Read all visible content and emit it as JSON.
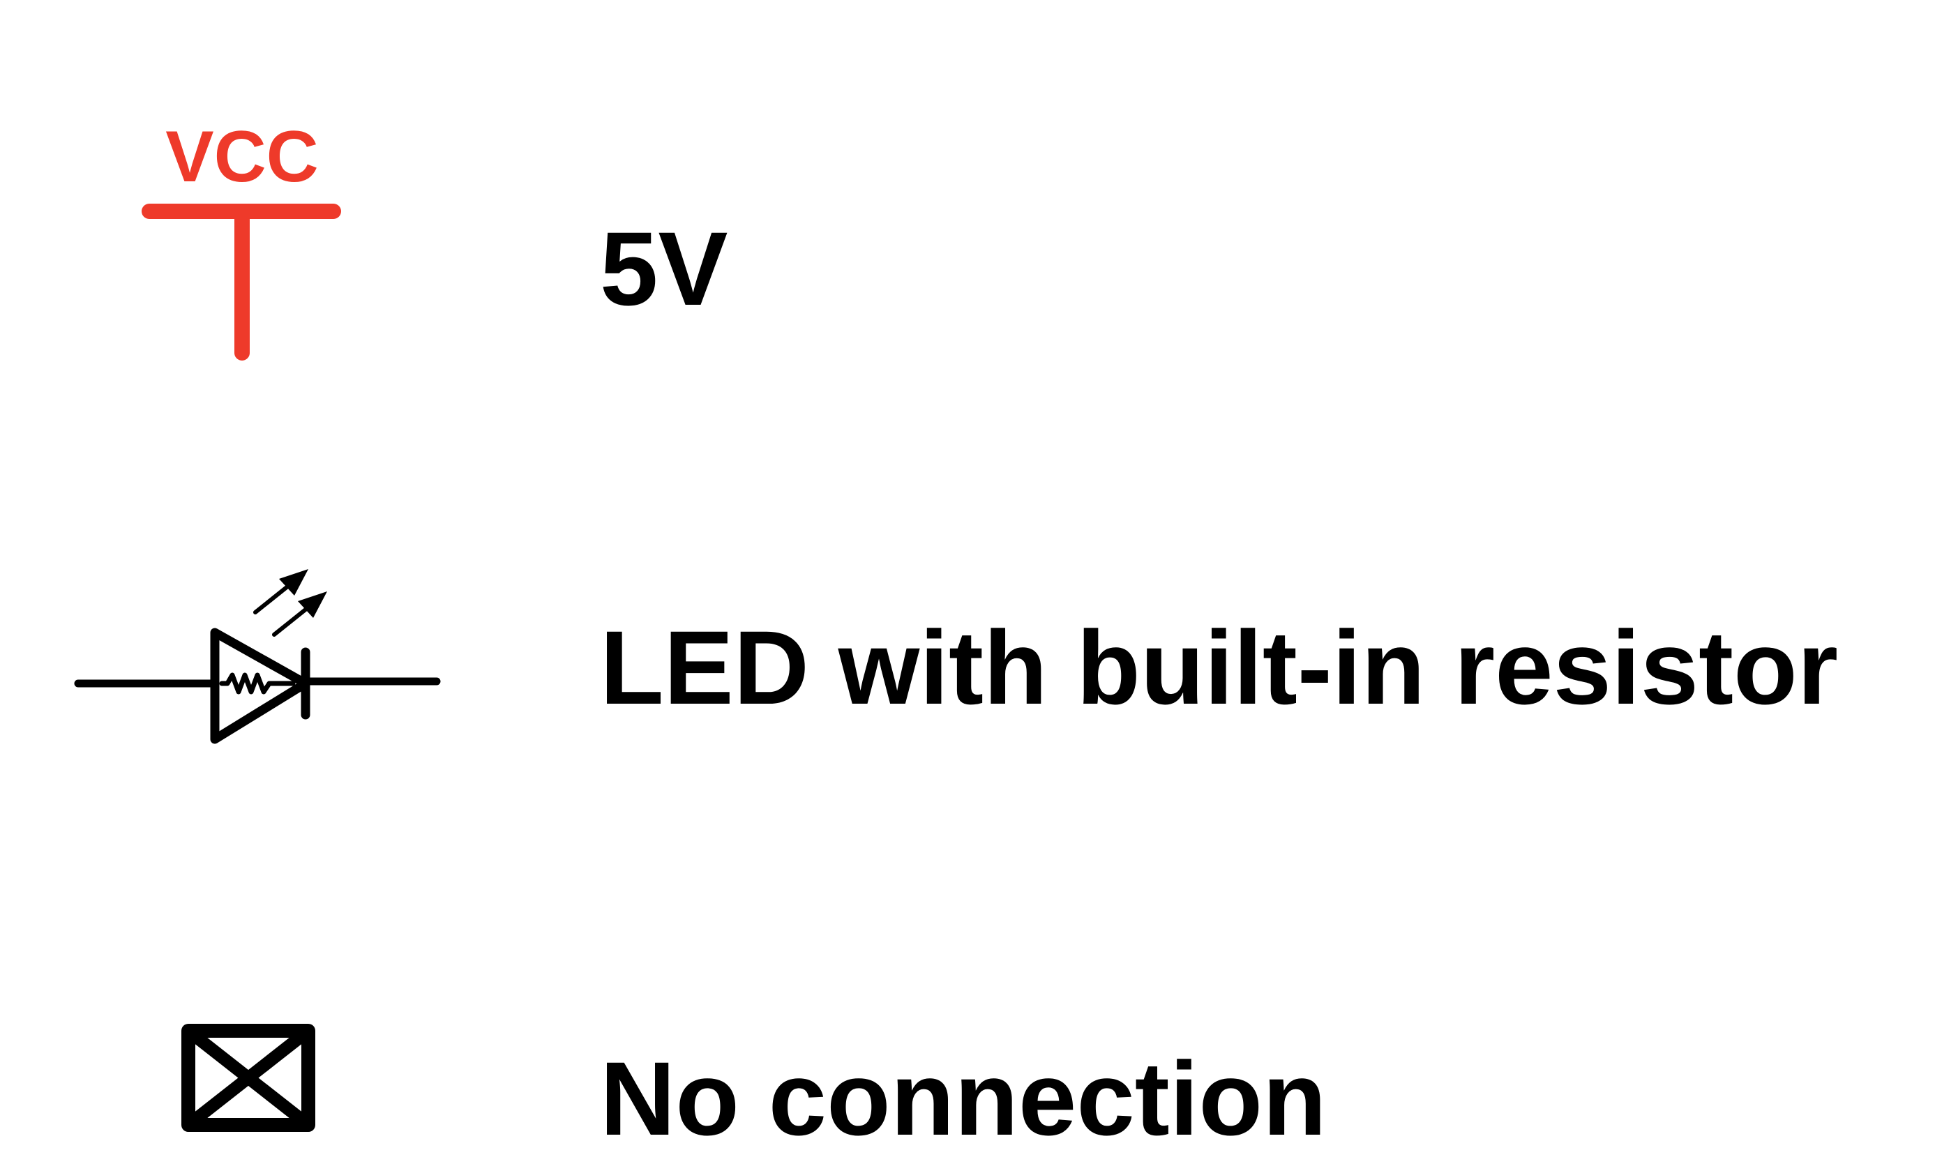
{
  "colors": {
    "vcc": "#ee3a2a",
    "ink": "#000000",
    "background": "#ffffff"
  },
  "legend": {
    "items": [
      {
        "symbol": "vcc-power-icon",
        "symbol_text": "VCC",
        "label": "5V"
      },
      {
        "symbol": "led-with-resistor-icon",
        "label": "LED with built-in resistor"
      },
      {
        "symbol": "no-connection-icon",
        "label": "No connection"
      }
    ]
  }
}
